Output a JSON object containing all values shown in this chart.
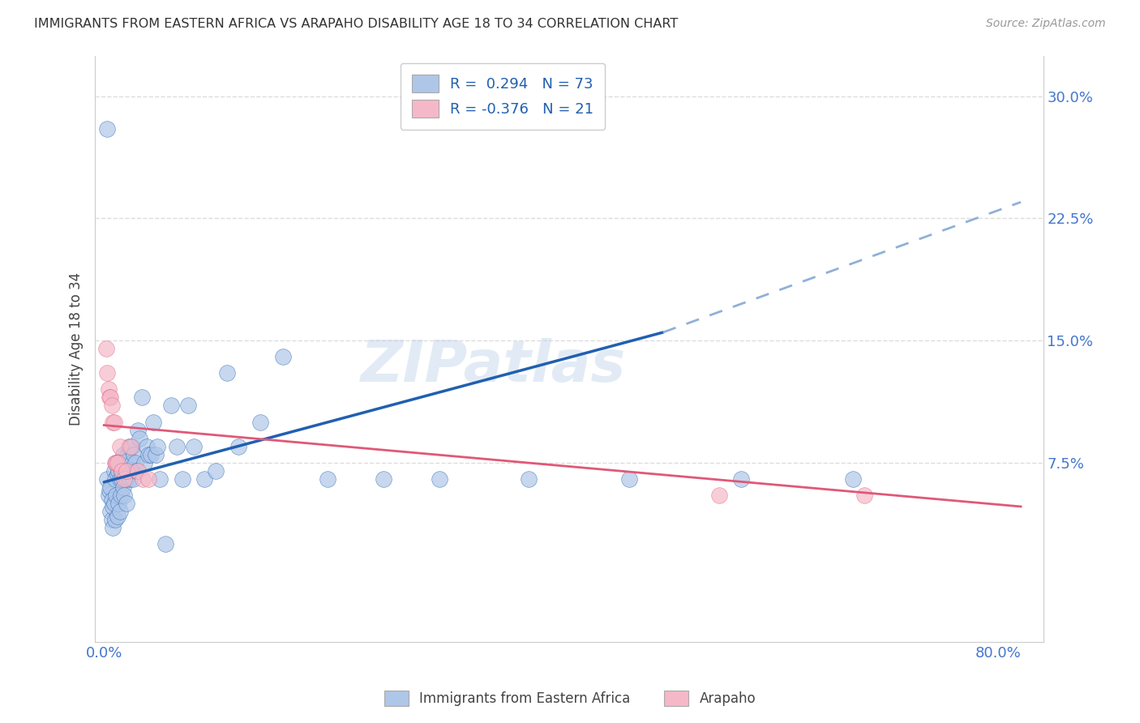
{
  "title": "IMMIGRANTS FROM EASTERN AFRICA VS ARAPAHO DISABILITY AGE 18 TO 34 CORRELATION CHART",
  "source": "Source: ZipAtlas.com",
  "ylabel": "Disability Age 18 to 34",
  "xlim": [
    -0.008,
    0.84
  ],
  "ylim": [
    -0.035,
    0.325
  ],
  "blue_R": 0.294,
  "blue_N": 73,
  "pink_R": -0.376,
  "pink_N": 21,
  "legend_labels": [
    "Immigrants from Eastern Africa",
    "Arapaho"
  ],
  "blue_color": "#aec6e8",
  "pink_color": "#f5b8c8",
  "blue_line_color": "#2060b0",
  "pink_line_color": "#e05878",
  "dashed_line_color": "#90b0d8",
  "title_color": "#333333",
  "source_color": "#999999",
  "axis_label_color": "#444444",
  "tick_color": "#4477cc",
  "grid_color": "#dddddd",
  "watermark": "ZIPatlas",
  "blue_line_x0": 0.0,
  "blue_line_y0": 0.063,
  "blue_line_x1": 0.5,
  "blue_line_y1": 0.155,
  "blue_line_x_dashed_end": 0.82,
  "blue_line_y_dashed_end": 0.235,
  "pink_line_x0": 0.0,
  "pink_line_y0": 0.098,
  "pink_line_x1": 0.82,
  "pink_line_y1": 0.048,
  "blue_scatter_x": [
    0.003,
    0.004,
    0.005,
    0.006,
    0.006,
    0.007,
    0.007,
    0.008,
    0.008,
    0.009,
    0.009,
    0.01,
    0.01,
    0.011,
    0.011,
    0.012,
    0.012,
    0.013,
    0.013,
    0.014,
    0.014,
    0.015,
    0.015,
    0.016,
    0.016,
    0.017,
    0.017,
    0.018,
    0.018,
    0.019,
    0.02,
    0.02,
    0.021,
    0.022,
    0.023,
    0.024,
    0.025,
    0.025,
    0.026,
    0.027,
    0.028,
    0.029,
    0.03,
    0.032,
    0.034,
    0.036,
    0.038,
    0.04,
    0.042,
    0.044,
    0.046,
    0.048,
    0.05,
    0.055,
    0.06,
    0.065,
    0.07,
    0.075,
    0.08,
    0.09,
    0.1,
    0.11,
    0.12,
    0.14,
    0.16,
    0.2,
    0.25,
    0.3,
    0.38,
    0.47,
    0.57,
    0.67,
    0.003
  ],
  "blue_scatter_y": [
    0.065,
    0.055,
    0.058,
    0.06,
    0.045,
    0.052,
    0.04,
    0.048,
    0.035,
    0.07,
    0.05,
    0.065,
    0.04,
    0.075,
    0.055,
    0.068,
    0.042,
    0.07,
    0.05,
    0.065,
    0.045,
    0.075,
    0.055,
    0.07,
    0.065,
    0.08,
    0.06,
    0.075,
    0.055,
    0.07,
    0.065,
    0.05,
    0.08,
    0.085,
    0.065,
    0.07,
    0.075,
    0.085,
    0.065,
    0.08,
    0.075,
    0.07,
    0.095,
    0.09,
    0.115,
    0.075,
    0.085,
    0.08,
    0.08,
    0.1,
    0.08,
    0.085,
    0.065,
    0.025,
    0.11,
    0.085,
    0.065,
    0.11,
    0.085,
    0.065,
    0.07,
    0.13,
    0.085,
    0.1,
    0.14,
    0.065,
    0.065,
    0.065,
    0.065,
    0.065,
    0.065,
    0.065,
    0.28
  ],
  "pink_scatter_x": [
    0.002,
    0.003,
    0.004,
    0.005,
    0.006,
    0.007,
    0.008,
    0.009,
    0.01,
    0.011,
    0.012,
    0.014,
    0.016,
    0.018,
    0.02,
    0.024,
    0.03,
    0.035,
    0.04,
    0.55,
    0.68
  ],
  "pink_scatter_y": [
    0.145,
    0.13,
    0.12,
    0.115,
    0.115,
    0.11,
    0.1,
    0.1,
    0.075,
    0.075,
    0.075,
    0.085,
    0.07,
    0.065,
    0.07,
    0.085,
    0.07,
    0.065,
    0.065,
    0.055,
    0.055
  ]
}
